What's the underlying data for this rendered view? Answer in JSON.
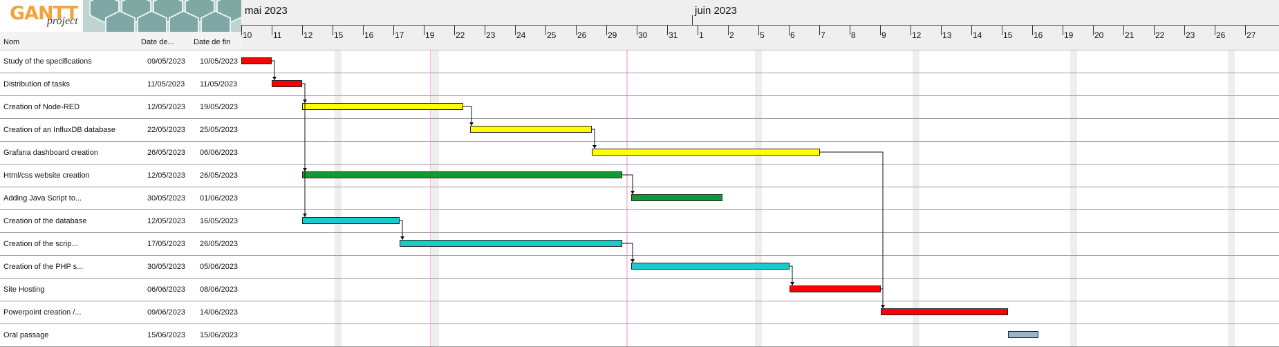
{
  "app": {
    "logo_text": "GANTT",
    "logo_subtext": "project"
  },
  "columns": {
    "name": "Nom",
    "start": "Date de...",
    "end": "Date de fin"
  },
  "months": [
    "mai 2023",
    "juin 2023"
  ],
  "days": [
    "10",
    "11",
    "12",
    "15",
    "16",
    "17",
    "19",
    "22",
    "23",
    "24",
    "25",
    "26",
    "29",
    "30",
    "31",
    "1",
    "2",
    "5",
    "6",
    "7",
    "8",
    "9",
    "12",
    "13",
    "14",
    "15",
    "16",
    "19",
    "20",
    "21",
    "22",
    "23",
    "26",
    "27"
  ],
  "colors": {
    "red": "#ff0000",
    "yellow": "#ffff00",
    "green": "#109a33",
    "cyan": "#16cccc",
    "blue": "#95b6cc"
  },
  "tasks": [
    {
      "name": "Study of the specifications",
      "start": "09/05/2023",
      "end": "10/05/2023",
      "color": "red"
    },
    {
      "name": "Distribution of tasks",
      "start": "11/05/2023",
      "end": "11/05/2023",
      "color": "red"
    },
    {
      "name": "Creation of Node-RED",
      "start": "12/05/2023",
      "end": "19/05/2023",
      "color": "yellow"
    },
    {
      "name": "Creation of an InfluxDB database",
      "start": "22/05/2023",
      "end": "25/05/2023",
      "color": "yellow"
    },
    {
      "name": "Grafana dashboard creation",
      "start": "26/05/2023",
      "end": "06/06/2023",
      "color": "yellow"
    },
    {
      "name": "Html/css website creation",
      "start": "12/05/2023",
      "end": "26/05/2023",
      "color": "green"
    },
    {
      "name": "Adding Java Script to...",
      "start": "30/05/2023",
      "end": "01/06/2023",
      "color": "green"
    },
    {
      "name": "Creation of the database",
      "start": "12/05/2023",
      "end": "16/05/2023",
      "color": "cyan"
    },
    {
      "name": "Creation of the scrip...",
      "start": "17/05/2023",
      "end": "26/05/2023",
      "color": "cyan"
    },
    {
      "name": "Creation of the PHP s...",
      "start": "30/05/2023",
      "end": "05/06/2023",
      "color": "cyan"
    },
    {
      "name": "Site Hosting",
      "start": "06/06/2023",
      "end": "08/06/2023",
      "color": "red"
    },
    {
      "name": "Powerpoint creation /...",
      "start": "09/06/2023",
      "end": "14/06/2023",
      "color": "red"
    },
    {
      "name": "Oral passage",
      "start": "15/06/2023",
      "end": "15/06/2023",
      "color": "blue"
    }
  ]
}
